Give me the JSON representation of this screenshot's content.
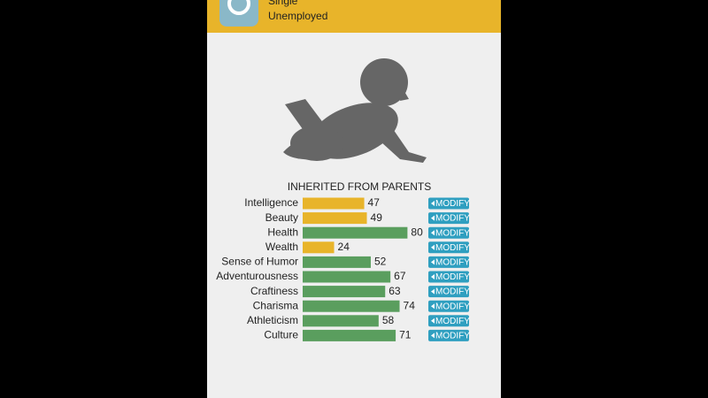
{
  "header": {
    "status": "Single",
    "job": "Unemployed"
  },
  "section_title": "INHERITED FROM PARENTS",
  "button_label": "MODIFY",
  "stats": [
    {
      "name": "Intelligence",
      "value": 47,
      "color": "#e8b42a"
    },
    {
      "name": "Beauty",
      "value": 49,
      "color": "#e8b42a"
    },
    {
      "name": "Health",
      "value": 80,
      "color": "#5a9e5e"
    },
    {
      "name": "Wealth",
      "value": 24,
      "color": "#e8b42a"
    },
    {
      "name": "Sense of Humor",
      "value": 52,
      "color": "#5a9e5e"
    },
    {
      "name": "Adventurousness",
      "value": 67,
      "color": "#5a9e5e"
    },
    {
      "name": "Craftiness",
      "value": 63,
      "color": "#5a9e5e"
    },
    {
      "name": "Charisma",
      "value": 74,
      "color": "#5a9e5e"
    },
    {
      "name": "Athleticism",
      "value": 58,
      "color": "#5a9e5e"
    },
    {
      "name": "Culture",
      "value": 71,
      "color": "#5a9e5e"
    }
  ]
}
